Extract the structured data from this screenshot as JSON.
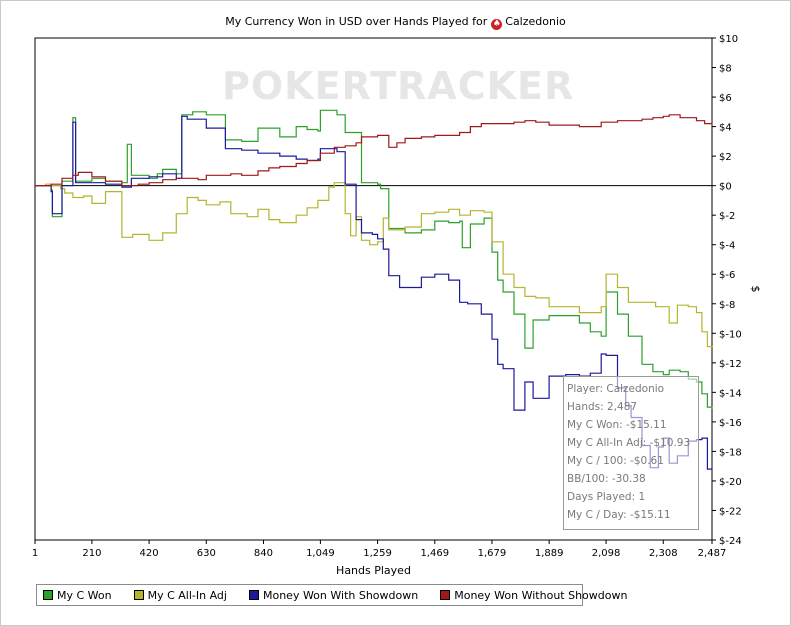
{
  "chart_data": {
    "type": "line",
    "title_prefix": "My Currency Won in USD over Hands Played for",
    "player": "Calzedonio",
    "xlabel": "Hands Played",
    "ylabel": "$",
    "xlim": [
      1,
      2487
    ],
    "ylim": [
      -24,
      10
    ],
    "x_ticks": [
      1,
      210,
      420,
      630,
      840,
      1049,
      1259,
      1469,
      1679,
      1889,
      2098,
      2308,
      2487
    ],
    "y_ticks": [
      10,
      8,
      6,
      4,
      2,
      0,
      -2,
      -4,
      -6,
      -8,
      -10,
      -12,
      -14,
      -16,
      -18,
      -20,
      -22,
      -24
    ],
    "y_tick_labels": [
      "$10",
      "$8",
      "$6",
      "$4",
      "$2",
      "$0",
      "$-2",
      "$-4",
      "$-6",
      "$-8",
      "$-10",
      "$-12",
      "$-14",
      "$-16",
      "$-18",
      "$-20",
      "$-22",
      "$-24"
    ],
    "grid": false,
    "legend_position": "bottom",
    "series": [
      {
        "name": "My C Won",
        "color": "#2ca02c",
        "points": [
          [
            1,
            0
          ],
          [
            60,
            -0.3
          ],
          [
            65,
            -2.1
          ],
          [
            95,
            -2.1
          ],
          [
            100,
            0.3
          ],
          [
            140,
            4.6
          ],
          [
            150,
            0.3
          ],
          [
            210,
            0.5
          ],
          [
            260,
            0.3
          ],
          [
            320,
            0.2
          ],
          [
            340,
            2.8
          ],
          [
            355,
            0.7
          ],
          [
            420,
            0.5
          ],
          [
            450,
            0.8
          ],
          [
            470,
            1.1
          ],
          [
            520,
            0.8
          ],
          [
            540,
            4.8
          ],
          [
            580,
            5.0
          ],
          [
            630,
            4.8
          ],
          [
            700,
            3.1
          ],
          [
            760,
            3.0
          ],
          [
            820,
            3.9
          ],
          [
            900,
            3.3
          ],
          [
            960,
            4.0
          ],
          [
            1000,
            3.8
          ],
          [
            1040,
            3.7
          ],
          [
            1049,
            5.1
          ],
          [
            1110,
            4.8
          ],
          [
            1140,
            3.6
          ],
          [
            1200,
            0.2
          ],
          [
            1259,
            0.1
          ],
          [
            1270,
            -0.2
          ],
          [
            1300,
            -2.9
          ],
          [
            1360,
            -3.2
          ],
          [
            1420,
            -3.0
          ],
          [
            1469,
            -2.4
          ],
          [
            1520,
            -2.5
          ],
          [
            1560,
            -2.4
          ],
          [
            1570,
            -4.2
          ],
          [
            1600,
            -2.6
          ],
          [
            1650,
            -2.2
          ],
          [
            1679,
            -4.5
          ],
          [
            1700,
            -6.4
          ],
          [
            1720,
            -7.2
          ],
          [
            1760,
            -8.7
          ],
          [
            1800,
            -11.0
          ],
          [
            1830,
            -9.1
          ],
          [
            1889,
            -8.8
          ],
          [
            1950,
            -8.8
          ],
          [
            2000,
            -9.3
          ],
          [
            2040,
            -9.9
          ],
          [
            2080,
            -10.2
          ],
          [
            2098,
            -7.2
          ],
          [
            2140,
            -8.7
          ],
          [
            2180,
            -10.2
          ],
          [
            2230,
            -12.1
          ],
          [
            2270,
            -12.6
          ],
          [
            2308,
            -12.8
          ],
          [
            2330,
            -12.5
          ],
          [
            2370,
            -12.6
          ],
          [
            2400,
            -13.1
          ],
          [
            2430,
            -13.3
          ],
          [
            2450,
            -14.1
          ],
          [
            2470,
            -15.0
          ],
          [
            2487,
            -15.11
          ]
        ]
      },
      {
        "name": "My C All-In Adj",
        "color": "#b5b530",
        "points": [
          [
            1,
            0
          ],
          [
            40,
            0.1
          ],
          [
            60,
            0
          ],
          [
            95,
            -0.2
          ],
          [
            110,
            -0.5
          ],
          [
            140,
            -0.8
          ],
          [
            180,
            -0.7
          ],
          [
            210,
            -1.2
          ],
          [
            260,
            -0.4
          ],
          [
            320,
            -3.5
          ],
          [
            360,
            -3.3
          ],
          [
            420,
            -3.7
          ],
          [
            470,
            -3.2
          ],
          [
            520,
            -1.9
          ],
          [
            560,
            -0.8
          ],
          [
            600,
            -1.0
          ],
          [
            630,
            -1.3
          ],
          [
            680,
            -1.1
          ],
          [
            720,
            -1.9
          ],
          [
            780,
            -2.1
          ],
          [
            820,
            -1.6
          ],
          [
            860,
            -2.3
          ],
          [
            900,
            -2.5
          ],
          [
            960,
            -2.0
          ],
          [
            1000,
            -1.5
          ],
          [
            1040,
            -1.0
          ],
          [
            1080,
            -0.1
          ],
          [
            1100,
            0.2
          ],
          [
            1140,
            -1.9
          ],
          [
            1160,
            -3.4
          ],
          [
            1180,
            -2.1
          ],
          [
            1200,
            -3.7
          ],
          [
            1230,
            -4.0
          ],
          [
            1259,
            -3.8
          ],
          [
            1280,
            -2.2
          ],
          [
            1300,
            -3.0
          ],
          [
            1360,
            -2.8
          ],
          [
            1420,
            -1.9
          ],
          [
            1469,
            -1.8
          ],
          [
            1520,
            -1.6
          ],
          [
            1560,
            -2.0
          ],
          [
            1600,
            -1.7
          ],
          [
            1650,
            -1.8
          ],
          [
            1679,
            -3.8
          ],
          [
            1720,
            -6.0
          ],
          [
            1760,
            -6.9
          ],
          [
            1800,
            -7.5
          ],
          [
            1840,
            -7.6
          ],
          [
            1889,
            -8.2
          ],
          [
            1950,
            -8.2
          ],
          [
            2000,
            -8.6
          ],
          [
            2040,
            -8.6
          ],
          [
            2080,
            -8.2
          ],
          [
            2098,
            -6.0
          ],
          [
            2140,
            -6.9
          ],
          [
            2180,
            -7.9
          ],
          [
            2230,
            -7.9
          ],
          [
            2280,
            -8.2
          ],
          [
            2308,
            -8.2
          ],
          [
            2330,
            -9.3
          ],
          [
            2360,
            -8.1
          ],
          [
            2400,
            -8.2
          ],
          [
            2430,
            -8.6
          ],
          [
            2450,
            -9.9
          ],
          [
            2470,
            -10.9
          ],
          [
            2487,
            -10.93
          ]
        ]
      },
      {
        "name": "Money Won With Showdown",
        "color": "#1a1a9a",
        "points": [
          [
            1,
            0
          ],
          [
            60,
            -0.4
          ],
          [
            65,
            -1.9
          ],
          [
            95,
            -1.9
          ],
          [
            100,
            0.0
          ],
          [
            140,
            4.3
          ],
          [
            150,
            0.2
          ],
          [
            210,
            0.2
          ],
          [
            260,
            0.1
          ],
          [
            320,
            -0.1
          ],
          [
            355,
            0.5
          ],
          [
            420,
            0.6
          ],
          [
            470,
            0.8
          ],
          [
            520,
            0.5
          ],
          [
            540,
            4.7
          ],
          [
            560,
            4.5
          ],
          [
            630,
            3.9
          ],
          [
            700,
            2.5
          ],
          [
            760,
            2.4
          ],
          [
            820,
            2.2
          ],
          [
            900,
            2.0
          ],
          [
            960,
            1.8
          ],
          [
            1000,
            1.7
          ],
          [
            1040,
            1.8
          ],
          [
            1049,
            2.5
          ],
          [
            1110,
            2.3
          ],
          [
            1140,
            0.1
          ],
          [
            1180,
            -2.3
          ],
          [
            1200,
            -3.2
          ],
          [
            1240,
            -3.3
          ],
          [
            1259,
            -3.6
          ],
          [
            1280,
            -4.3
          ],
          [
            1300,
            -6.1
          ],
          [
            1340,
            -6.9
          ],
          [
            1380,
            -6.9
          ],
          [
            1420,
            -6.2
          ],
          [
            1469,
            -6.0
          ],
          [
            1520,
            -6.4
          ],
          [
            1560,
            -7.9
          ],
          [
            1590,
            -8.0
          ],
          [
            1640,
            -8.7
          ],
          [
            1679,
            -10.4
          ],
          [
            1700,
            -12.1
          ],
          [
            1720,
            -12.4
          ],
          [
            1760,
            -15.2
          ],
          [
            1800,
            -13.3
          ],
          [
            1830,
            -14.4
          ],
          [
            1889,
            -12.9
          ],
          [
            1950,
            -12.8
          ],
          [
            2000,
            -12.9
          ],
          [
            2040,
            -12.7
          ],
          [
            2080,
            -11.4
          ],
          [
            2098,
            -11.5
          ],
          [
            2140,
            -13.7
          ],
          [
            2170,
            -14.9
          ],
          [
            2190,
            -15.7
          ],
          [
            2230,
            -17.6
          ],
          [
            2260,
            -19.1
          ],
          [
            2290,
            -17.7
          ],
          [
            2308,
            -17.1
          ],
          [
            2330,
            -18.8
          ],
          [
            2360,
            -18.3
          ],
          [
            2400,
            -17.3
          ],
          [
            2430,
            -17.2
          ],
          [
            2450,
            -17.1
          ],
          [
            2470,
            -19.2
          ],
          [
            2487,
            -19.3
          ]
        ]
      },
      {
        "name": "Money Won Without Showdown",
        "color": "#a01818",
        "points": [
          [
            1,
            0
          ],
          [
            60,
            0.1
          ],
          [
            100,
            0.5
          ],
          [
            140,
            0.7
          ],
          [
            160,
            0.9
          ],
          [
            210,
            0.6
          ],
          [
            260,
            0.3
          ],
          [
            320,
            0
          ],
          [
            380,
            0.1
          ],
          [
            420,
            0.2
          ],
          [
            470,
            0.4
          ],
          [
            520,
            0.5
          ],
          [
            560,
            0.5
          ],
          [
            600,
            0.4
          ],
          [
            630,
            0.7
          ],
          [
            680,
            0.7
          ],
          [
            720,
            0.8
          ],
          [
            760,
            0.7
          ],
          [
            820,
            1.0
          ],
          [
            860,
            1.2
          ],
          [
            900,
            1.3
          ],
          [
            960,
            1.5
          ],
          [
            1000,
            1.7
          ],
          [
            1049,
            2.2
          ],
          [
            1100,
            2.6
          ],
          [
            1140,
            2.7
          ],
          [
            1180,
            2.9
          ],
          [
            1200,
            3.3
          ],
          [
            1259,
            3.4
          ],
          [
            1300,
            2.6
          ],
          [
            1330,
            2.9
          ],
          [
            1360,
            3.2
          ],
          [
            1420,
            3.3
          ],
          [
            1469,
            3.4
          ],
          [
            1520,
            3.4
          ],
          [
            1560,
            3.6
          ],
          [
            1600,
            4.0
          ],
          [
            1640,
            4.2
          ],
          [
            1679,
            4.2
          ],
          [
            1720,
            4.2
          ],
          [
            1760,
            4.3
          ],
          [
            1800,
            4.4
          ],
          [
            1840,
            4.3
          ],
          [
            1889,
            4.1
          ],
          [
            1950,
            4.1
          ],
          [
            2000,
            4.0
          ],
          [
            2040,
            4.0
          ],
          [
            2080,
            4.3
          ],
          [
            2098,
            4.3
          ],
          [
            2140,
            4.4
          ],
          [
            2180,
            4.4
          ],
          [
            2230,
            4.5
          ],
          [
            2270,
            4.6
          ],
          [
            2308,
            4.7
          ],
          [
            2330,
            4.8
          ],
          [
            2370,
            4.6
          ],
          [
            2400,
            4.6
          ],
          [
            2430,
            4.4
          ],
          [
            2460,
            4.2
          ],
          [
            2487,
            4.1
          ]
        ]
      }
    ]
  },
  "watermark_text": "POKERTRACKER",
  "tooltip": {
    "lines": [
      "Player: Calzedonio",
      "Hands: 2,487",
      "My C Won: -$15.11",
      "My C All-In Adj: -$10.93",
      "My C / 100: -$0.61",
      "BB/100: -30.38",
      "Days Played: 1",
      "My C / Day: -$15.11"
    ]
  },
  "legend": {
    "items": [
      {
        "label": "My C Won",
        "color": "#2ca02c"
      },
      {
        "label": "My C All-In Adj",
        "color": "#b5b530"
      },
      {
        "label": "Money Won With Showdown",
        "color": "#1a1a9a"
      },
      {
        "label": "Money Won Without Showdown",
        "color": "#a01818"
      }
    ]
  }
}
